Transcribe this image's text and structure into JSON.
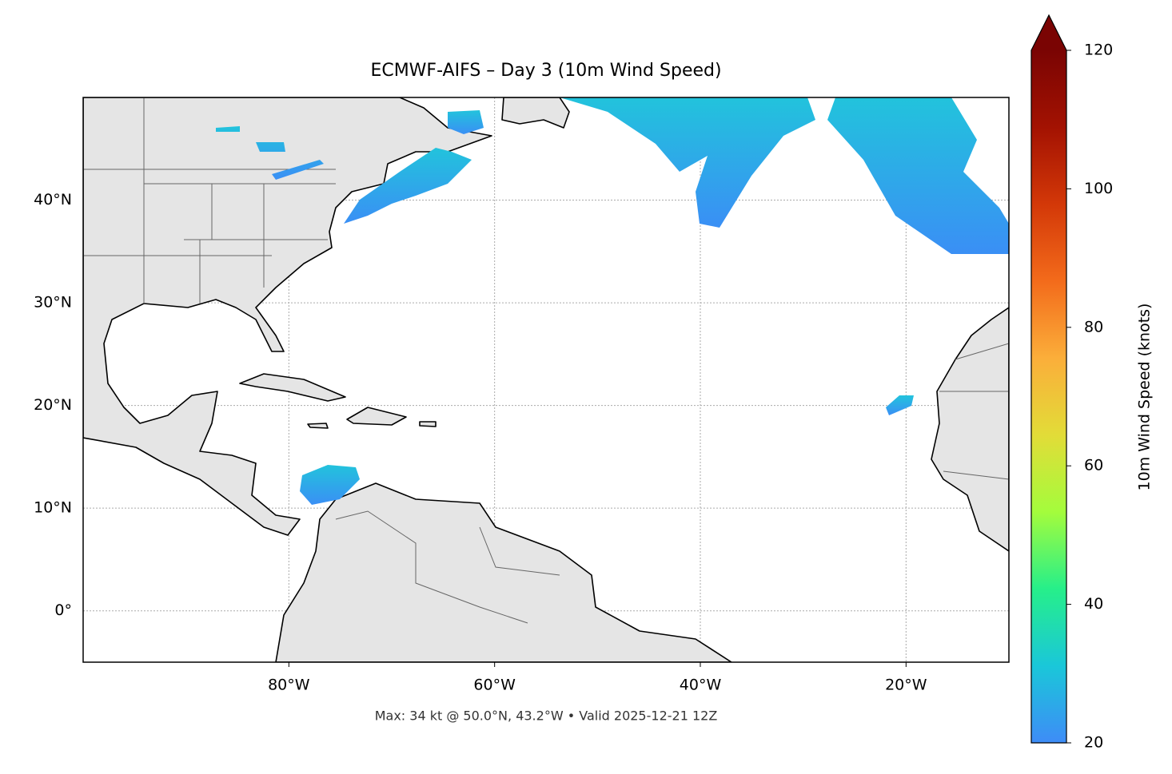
{
  "map": {
    "title": "ECMWF-AIFS – Day 3 (10m Wind Speed)",
    "footnote": "Max: 34 kt @ 50.0°N, 43.2°W • Valid 2025-12-21 12Z",
    "xlim": [
      -100,
      -10
    ],
    "ylim": [
      -5,
      50
    ],
    "xticks": [
      {
        "value": -80,
        "label": "80°W"
      },
      {
        "value": -60,
        "label": "60°W"
      },
      {
        "value": -40,
        "label": "40°W"
      },
      {
        "value": -20,
        "label": "20°W"
      }
    ],
    "yticks": [
      {
        "value": 0,
        "label": "0°"
      },
      {
        "value": 10,
        "label": "10°N"
      },
      {
        "value": 20,
        "label": "20°N"
      },
      {
        "value": 30,
        "label": "30°N"
      },
      {
        "value": 40,
        "label": "40°N"
      }
    ],
    "grid": true,
    "colorbar": {
      "label": "10m Wind Speed (knots)",
      "lim": [
        20,
        120
      ],
      "ticks": [
        20,
        40,
        60,
        80,
        100,
        120
      ],
      "colors": [
        "#3e8cf7",
        "#1ac7d9",
        "#26ef8a",
        "#a4fc3c",
        "#e2dc38",
        "#fbae3a",
        "#f36b1b",
        "#d33808",
        "#a31202",
        "#7a0403"
      ],
      "extend": "max"
    }
  }
}
